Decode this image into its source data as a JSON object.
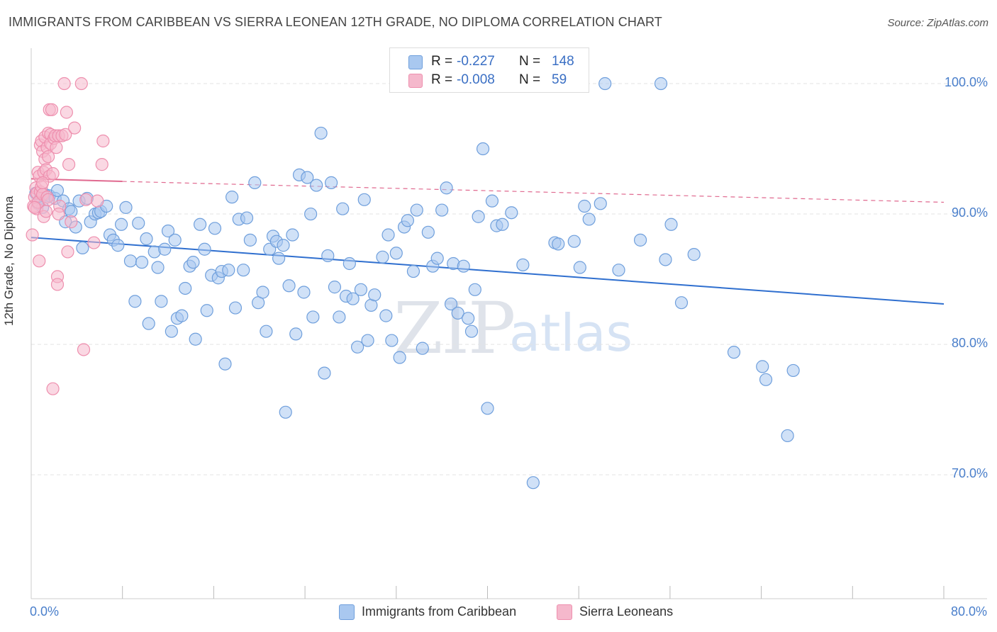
{
  "title": "IMMIGRANTS FROM CARIBBEAN VS SIERRA LEONEAN 12TH GRADE, NO DIPLOMA CORRELATION CHART",
  "source": "Source: ZipAtlas.com",
  "watermark": {
    "zip": "ZIP",
    "atlas": "atlas"
  },
  "legend": {
    "r_label": "R =",
    "n_label": "N =",
    "rows": [
      {
        "r": "-0.227",
        "n": "148",
        "swatch": "#a9c8f0"
      },
      {
        "r": "-0.008",
        "n": "59",
        "swatch": "#f5b8cc"
      }
    ]
  },
  "bottom_legend": [
    {
      "label": "Immigrants from Caribbean",
      "color": "#a9c8f0"
    },
    {
      "label": "Sierra Leoneans",
      "color": "#f5b8cc"
    }
  ],
  "chart_data": {
    "type": "scatter",
    "title": "IMMIGRANTS FROM CARIBBEAN VS SIERRA LEONEAN 12TH GRADE, NO DIPLOMA CORRELATION CHART",
    "xlabel": "",
    "ylabel": "12th Grade, No Diploma",
    "x_tick_labels": [
      "0.0%",
      "80.0%"
    ],
    "y_tick_labels": [
      "100.0%",
      "90.0%",
      "80.0%",
      "70.0%"
    ],
    "y_ticks": [
      100,
      90,
      80,
      70
    ],
    "xlim": [
      0,
      80
    ],
    "ylim": [
      60.5,
      102.5
    ],
    "grid": true,
    "legend_position": "top-center",
    "series": [
      {
        "name": "Immigrants from Caribbean",
        "color": "#6f9fdc",
        "fill": "#a9c8f0",
        "trend": {
          "x": [
            0,
            80
          ],
          "y": [
            88.2,
            83.1
          ],
          "color": "#2f6fcf",
          "dashed": false
        },
        "points": [
          [
            0.4,
            91.6
          ],
          [
            0.6,
            90.8
          ],
          [
            0.8,
            91.2
          ],
          [
            1.0,
            90.5
          ],
          [
            1.2,
            91.5
          ],
          [
            1.4,
            91.3
          ],
          [
            1.6,
            91.4
          ],
          [
            2.1,
            91.2
          ],
          [
            2.3,
            91.8
          ],
          [
            2.8,
            91.0
          ],
          [
            3.0,
            89.4
          ],
          [
            3.3,
            90.4
          ],
          [
            3.5,
            90.2
          ],
          [
            3.9,
            89.0
          ],
          [
            4.2,
            91.0
          ],
          [
            4.5,
            87.4
          ],
          [
            4.9,
            91.2
          ],
          [
            5.2,
            89.4
          ],
          [
            5.6,
            90.0
          ],
          [
            5.9,
            90.1
          ],
          [
            6.1,
            90.2
          ],
          [
            6.6,
            90.6
          ],
          [
            6.9,
            88.4
          ],
          [
            7.2,
            88.0
          ],
          [
            7.6,
            87.6
          ],
          [
            7.9,
            89.2
          ],
          [
            8.3,
            90.5
          ],
          [
            8.7,
            86.4
          ],
          [
            9.1,
            83.3
          ],
          [
            9.4,
            89.3
          ],
          [
            9.7,
            86.3
          ],
          [
            10.1,
            88.1
          ],
          [
            10.3,
            81.6
          ],
          [
            10.8,
            87.1
          ],
          [
            11.1,
            85.9
          ],
          [
            11.4,
            83.3
          ],
          [
            11.7,
            87.3
          ],
          [
            12.0,
            88.7
          ],
          [
            12.3,
            81.0
          ],
          [
            12.6,
            88.0
          ],
          [
            12.8,
            82.0
          ],
          [
            13.2,
            82.2
          ],
          [
            13.5,
            84.3
          ],
          [
            13.9,
            86.0
          ],
          [
            14.2,
            86.3
          ],
          [
            14.4,
            80.4
          ],
          [
            14.8,
            89.2
          ],
          [
            15.2,
            87.3
          ],
          [
            15.4,
            82.6
          ],
          [
            15.8,
            85.3
          ],
          [
            16.1,
            88.9
          ],
          [
            16.4,
            85.1
          ],
          [
            16.7,
            85.6
          ],
          [
            17.0,
            78.5
          ],
          [
            17.3,
            85.7
          ],
          [
            17.6,
            91.3
          ],
          [
            17.9,
            82.8
          ],
          [
            18.2,
            89.6
          ],
          [
            18.6,
            85.7
          ],
          [
            18.9,
            89.7
          ],
          [
            19.2,
            88.0
          ],
          [
            19.6,
            92.4
          ],
          [
            19.9,
            83.2
          ],
          [
            20.3,
            84.0
          ],
          [
            20.6,
            81.0
          ],
          [
            20.9,
            87.3
          ],
          [
            21.2,
            88.3
          ],
          [
            21.5,
            87.9
          ],
          [
            21.7,
            86.6
          ],
          [
            22.1,
            87.6
          ],
          [
            22.3,
            74.8
          ],
          [
            22.6,
            84.5
          ],
          [
            22.9,
            88.4
          ],
          [
            23.2,
            80.8
          ],
          [
            23.5,
            93.0
          ],
          [
            23.9,
            84.0
          ],
          [
            24.2,
            92.8
          ],
          [
            24.5,
            90.0
          ],
          [
            24.7,
            82.1
          ],
          [
            25.0,
            92.2
          ],
          [
            25.4,
            96.2
          ],
          [
            25.7,
            77.8
          ],
          [
            26.0,
            86.8
          ],
          [
            26.3,
            92.4
          ],
          [
            26.6,
            84.4
          ],
          [
            27.0,
            82.1
          ],
          [
            27.3,
            90.4
          ],
          [
            27.6,
            83.7
          ],
          [
            27.9,
            86.2
          ],
          [
            28.2,
            83.5
          ],
          [
            28.6,
            79.8
          ],
          [
            28.9,
            84.2
          ],
          [
            29.2,
            91.1
          ],
          [
            29.5,
            80.3
          ],
          [
            29.8,
            83.0
          ],
          [
            30.1,
            83.8
          ],
          [
            30.8,
            86.7
          ],
          [
            31.1,
            82.2
          ],
          [
            31.3,
            88.4
          ],
          [
            31.6,
            80.3
          ],
          [
            32.0,
            87.0
          ],
          [
            32.3,
            79.0
          ],
          [
            32.7,
            89.0
          ],
          [
            33.0,
            89.5
          ],
          [
            33.5,
            85.6
          ],
          [
            33.8,
            90.3
          ],
          [
            34.3,
            79.7
          ],
          [
            34.8,
            88.6
          ],
          [
            35.2,
            86.0
          ],
          [
            35.6,
            86.6
          ],
          [
            36.0,
            90.3
          ],
          [
            36.4,
            92.0
          ],
          [
            36.8,
            83.1
          ],
          [
            37.0,
            86.2
          ],
          [
            37.4,
            82.4
          ],
          [
            37.9,
            86.0
          ],
          [
            38.3,
            82.0
          ],
          [
            38.6,
            81.0
          ],
          [
            38.9,
            84.2
          ],
          [
            39.2,
            89.8
          ],
          [
            39.6,
            95.0
          ],
          [
            40.0,
            75.1
          ],
          [
            40.4,
            91.0
          ],
          [
            40.8,
            89.1
          ],
          [
            41.3,
            89.2
          ],
          [
            42.1,
            90.1
          ],
          [
            43.1,
            86.1
          ],
          [
            44.0,
            69.4
          ],
          [
            45.9,
            87.8
          ],
          [
            46.2,
            87.7
          ],
          [
            47.6,
            87.9
          ],
          [
            48.1,
            85.9
          ],
          [
            48.5,
            90.6
          ],
          [
            48.9,
            89.6
          ],
          [
            49.9,
            90.8
          ],
          [
            50.3,
            100.0
          ],
          [
            51.5,
            85.7
          ],
          [
            53.4,
            88.0
          ],
          [
            55.2,
            100.0
          ],
          [
            55.6,
            86.5
          ],
          [
            56.1,
            89.2
          ],
          [
            57.0,
            83.2
          ],
          [
            58.1,
            86.9
          ],
          [
            61.6,
            79.4
          ],
          [
            64.1,
            78.3
          ],
          [
            64.4,
            77.3
          ],
          [
            66.3,
            73.0
          ],
          [
            66.8,
            78.0
          ]
        ]
      },
      {
        "name": "Sierra Leoneans",
        "color": "#ee8fae",
        "fill": "#f5b8cc",
        "trend": {
          "x": [
            0,
            8
          ],
          "y": [
            92.7,
            92.5
          ],
          "x_dashed_to": 80,
          "y_dashed_to": 90.9,
          "color": "#e0698f",
          "dashed": true
        },
        "points": [
          [
            0.1,
            88.4
          ],
          [
            0.2,
            90.6
          ],
          [
            0.3,
            91.3
          ],
          [
            0.4,
            92.0
          ],
          [
            0.5,
            90.4
          ],
          [
            0.5,
            91.6
          ],
          [
            0.6,
            93.2
          ],
          [
            0.6,
            90.9
          ],
          [
            0.7,
            92.9
          ],
          [
            0.7,
            86.4
          ],
          [
            0.8,
            95.3
          ],
          [
            0.8,
            91.7
          ],
          [
            0.9,
            95.6
          ],
          [
            0.9,
            92.1
          ],
          [
            1.0,
            91.5
          ],
          [
            1.0,
            94.8
          ],
          [
            1.1,
            93.2
          ],
          [
            1.1,
            89.8
          ],
          [
            1.2,
            94.2
          ],
          [
            1.2,
            95.9
          ],
          [
            1.3,
            93.4
          ],
          [
            1.3,
            90.2
          ],
          [
            1.4,
            95.1
          ],
          [
            1.4,
            91.3
          ],
          [
            1.5,
            96.2
          ],
          [
            1.5,
            94.4
          ],
          [
            1.6,
            98.0
          ],
          [
            1.6,
            92.9
          ],
          [
            1.7,
            96.1
          ],
          [
            1.7,
            95.4
          ],
          [
            1.8,
            98.0
          ],
          [
            1.9,
            93.1
          ],
          [
            2.0,
            95.8
          ],
          [
            2.1,
            96.0
          ],
          [
            2.2,
            95.1
          ],
          [
            2.3,
            85.2
          ],
          [
            2.3,
            84.6
          ],
          [
            2.4,
            96.0
          ],
          [
            2.5,
            90.6
          ],
          [
            2.7,
            96.0
          ],
          [
            2.9,
            100.0
          ],
          [
            3.0,
            96.1
          ],
          [
            3.1,
            97.8
          ],
          [
            3.2,
            87.1
          ],
          [
            3.3,
            93.8
          ],
          [
            3.5,
            89.4
          ],
          [
            3.8,
            96.6
          ],
          [
            4.4,
            100.0
          ],
          [
            4.6,
            79.6
          ],
          [
            4.8,
            91.1
          ],
          [
            5.5,
            87.8
          ],
          [
            5.8,
            91.0
          ],
          [
            6.2,
            93.8
          ],
          [
            6.3,
            95.6
          ],
          [
            1.9,
            76.6
          ],
          [
            2.4,
            90.0
          ],
          [
            0.3,
            90.5
          ],
          [
            1.5,
            91.1
          ],
          [
            1.0,
            92.4
          ]
        ]
      }
    ]
  }
}
